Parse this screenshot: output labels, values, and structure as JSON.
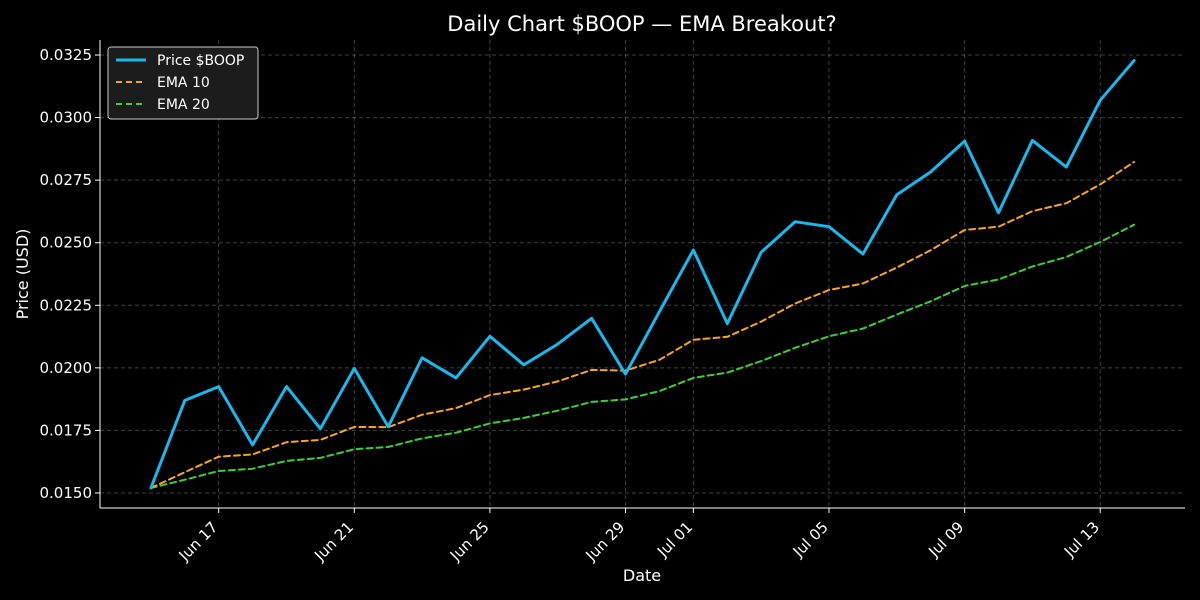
{
  "chart_data": {
    "type": "line",
    "title": "Daily Chart $BOOP — EMA Breakout?",
    "xlabel": "Date",
    "ylabel": "Price (USD)",
    "x_ticks": [
      "Jun 17",
      "Jun 21",
      "Jun 25",
      "Jun 29",
      "Jul 01",
      "Jul 05",
      "Jul 09",
      "Jul 13"
    ],
    "y_ticks": [
      "0.0150",
      "0.0175",
      "0.0200",
      "0.0225",
      "0.0250",
      "0.0275",
      "0.0300",
      "0.0325"
    ],
    "ylim": [
      0.0144,
      0.0331
    ],
    "xlim": [
      "2025-06-13T12:00",
      "2025-07-15T12:00"
    ],
    "grid": true,
    "legend_position": "top-left",
    "x": [
      "2025-06-15",
      "2025-06-16",
      "2025-06-17",
      "2025-06-18",
      "2025-06-19",
      "2025-06-20",
      "2025-06-21",
      "2025-06-22",
      "2025-06-23",
      "2025-06-24",
      "2025-06-25",
      "2025-06-26",
      "2025-06-27",
      "2025-06-28",
      "2025-06-29",
      "2025-06-30",
      "2025-07-01",
      "2025-07-02",
      "2025-07-03",
      "2025-07-04",
      "2025-07-05",
      "2025-07-06",
      "2025-07-07",
      "2025-07-08",
      "2025-07-09",
      "2025-07-10",
      "2025-07-11",
      "2025-07-12",
      "2025-07-13",
      "2025-07-14"
    ],
    "series": [
      {
        "name": "Price $BOOP",
        "color": "#1ab8ec",
        "style": "solid",
        "values": [
          0.0152,
          0.0187,
          0.01925,
          0.01692,
          0.01925,
          0.01757,
          0.01998,
          0.01765,
          0.0204,
          0.0196,
          0.02126,
          0.02012,
          0.02095,
          0.02198,
          0.01975,
          0.02225,
          0.02471,
          0.02177,
          0.02462,
          0.02584,
          0.02564,
          0.02455,
          0.02692,
          0.02783,
          0.02906,
          0.0262,
          0.02909,
          0.02802,
          0.03069,
          0.03228
        ]
      },
      {
        "name": "EMA 10",
        "color": "#f5a623",
        "style": "dashed",
        "values": [
          0.0152,
          0.01583,
          0.01645,
          0.01654,
          0.01703,
          0.01712,
          0.01764,
          0.01763,
          0.01813,
          0.01839,
          0.01891,
          0.01913,
          0.01946,
          0.01992,
          0.01989,
          0.02032,
          0.02112,
          0.02124,
          0.02185,
          0.02257,
          0.02311,
          0.02337,
          0.02401,
          0.0247,
          0.02551,
          0.02564,
          0.02626,
          0.02658,
          0.02733,
          0.02823
        ]
      },
      {
        "name": "EMA 20",
        "color": "#3ecf35",
        "style": "dashed",
        "values": [
          0.0152,
          0.01553,
          0.01588,
          0.01597,
          0.01628,
          0.0164,
          0.01675,
          0.01684,
          0.01718,
          0.01741,
          0.01778,
          0.018,
          0.01829,
          0.01864,
          0.01874,
          0.01907,
          0.0196,
          0.01981,
          0.02027,
          0.0208,
          0.02126,
          0.02157,
          0.02213,
          0.02266,
          0.02327,
          0.02353,
          0.02405,
          0.02443,
          0.02503,
          0.02572
        ]
      }
    ]
  }
}
